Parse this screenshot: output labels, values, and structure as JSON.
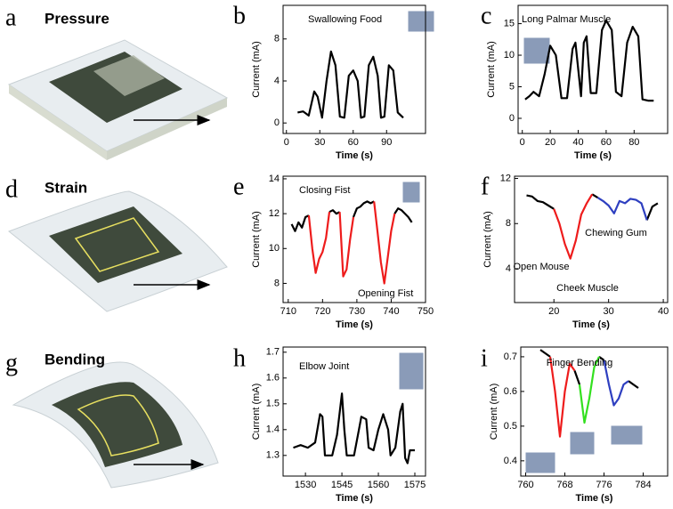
{
  "panels": [
    {
      "letter": "a",
      "label": "Pressure"
    },
    {
      "letter": "d",
      "label": "Strain"
    },
    {
      "letter": "g",
      "label": "Bending"
    }
  ],
  "chart_data": [
    {
      "type": "line",
      "label": "b",
      "xlabel": "Time (s)",
      "ylabel": "Current (mA)",
      "annotations": [
        {
          "text": "Swallowing Food",
          "color": "#000000"
        }
      ],
      "x": [
        10,
        15,
        20,
        25,
        28,
        32,
        36,
        40,
        44,
        48,
        52,
        56,
        60,
        64,
        67,
        70,
        74,
        78,
        82,
        85,
        88,
        92,
        96,
        100,
        105
      ],
      "series": [
        {
          "color": "#000000",
          "values": [
            1.0,
            1.1,
            0.7,
            3.0,
            2.5,
            0.5,
            4.0,
            6.8,
            5.5,
            0.6,
            0.5,
            4.5,
            5.0,
            4.0,
            0.5,
            0.6,
            5.5,
            6.3,
            4.5,
            0.5,
            0.6,
            5.5,
            5.0,
            1.0,
            0.5
          ]
        }
      ],
      "xlim": [
        -3,
        125
      ],
      "ylim": [
        -1,
        11.2
      ],
      "xticks": [
        0,
        30,
        60,
        90
      ],
      "yticks": [
        0,
        4,
        8
      ]
    },
    {
      "type": "line",
      "label": "c",
      "xlabel": "Time (s)",
      "ylabel": "Current (mA)",
      "annotations": [
        {
          "text": "Long Palmar Muscle",
          "color": "#000000"
        }
      ],
      "x": [
        2,
        5,
        8,
        12,
        16,
        20,
        24,
        28,
        32,
        36,
        38,
        42,
        44,
        46,
        49,
        53,
        57,
        60,
        64,
        67,
        71,
        75,
        79,
        83,
        86,
        90,
        94
      ],
      "series": [
        {
          "color": "#000000",
          "values": [
            3.0,
            3.5,
            4.2,
            3.5,
            7,
            11.5,
            10,
            3.2,
            3.2,
            11,
            12,
            3.5,
            12,
            13,
            4,
            4,
            14,
            15.5,
            14,
            4.2,
            3.5,
            12,
            14.5,
            13,
            3,
            2.8,
            2.8
          ]
        }
      ],
      "xlim": [
        -3,
        104
      ],
      "ylim": [
        -2.4,
        17.9
      ],
      "xticks": [
        0,
        20,
        40,
        60,
        80
      ],
      "yticks": [
        0,
        5,
        10,
        15
      ]
    },
    {
      "type": "line",
      "label": "e",
      "xlabel": "Time (s)",
      "ylabel": "Current (mA)",
      "annotations": [
        {
          "text": "Closing Fist",
          "color": "#000000"
        },
        {
          "text": "Opening Fist",
          "color": "#000000"
        }
      ],
      "x": [
        711,
        712,
        713,
        714,
        715,
        716,
        717,
        718,
        719,
        720,
        721,
        722,
        723,
        724,
        725,
        726,
        727,
        728,
        729,
        730,
        731,
        732,
        733,
        734,
        735,
        736,
        737,
        738,
        739,
        740,
        741,
        742,
        743,
        744,
        745,
        746
      ],
      "series": [
        {
          "color": "#000000",
          "values": [
            11.4,
            11.0,
            11.5,
            11.2,
            11.8,
            11.9,
            null,
            null,
            null,
            null,
            null,
            12.1,
            12.2,
            12.0,
            12.1,
            null,
            null,
            null,
            11.8,
            12.3,
            12.4,
            12.6,
            12.7,
            12.6,
            12.7,
            null,
            null,
            null,
            null,
            null,
            12.0,
            12.3,
            12.2,
            12.0,
            11.8,
            11.5
          ]
        },
        {
          "color": "#ee1c1c",
          "values": [
            null,
            null,
            null,
            null,
            null,
            11.9,
            10.0,
            8.6,
            9.4,
            9.8,
            10.6,
            12.1,
            null,
            null,
            12.1,
            8.4,
            8.8,
            10.5,
            11.8,
            null,
            null,
            null,
            null,
            null,
            12.7,
            11.0,
            9.2,
            8.0,
            9.5,
            11.0,
            12.0,
            null,
            null,
            null,
            null,
            null
          ]
        }
      ],
      "xlim": [
        708.5,
        750
      ],
      "ylim": [
        6.9,
        14.15
      ],
      "xticks": [
        710,
        720,
        730,
        740,
        750
      ],
      "yticks": [
        8,
        10,
        12,
        14
      ]
    },
    {
      "type": "line",
      "label": "f",
      "xlabel": "Time (s)",
      "ylabel": "Current (mA)",
      "annotations": [
        {
          "text": "Open Mouse",
          "color": "#ee1c1c"
        },
        {
          "text": "Chewing Gum",
          "color": "#2e3fc0"
        },
        {
          "text": "Cheek Muscle",
          "color": "#000000"
        }
      ],
      "x": [
        15,
        16,
        17,
        18,
        19,
        20,
        21,
        22,
        23,
        24,
        25,
        26,
        27,
        28,
        29,
        30,
        31,
        32,
        33,
        34,
        35,
        36,
        37,
        38,
        39
      ],
      "series": [
        {
          "color": "#000000",
          "values": [
            10.5,
            10.4,
            10.0,
            9.9,
            9.6,
            9.3,
            null,
            null,
            null,
            null,
            null,
            null,
            10.6,
            10.3,
            null,
            null,
            null,
            null,
            null,
            null,
            null,
            null,
            8.3,
            9.5,
            9.8
          ]
        },
        {
          "color": "#ee1c1c",
          "values": [
            null,
            null,
            null,
            null,
            null,
            9.3,
            8.0,
            6.2,
            4.9,
            6.5,
            8.8,
            9.8,
            10.6,
            null,
            null,
            null,
            null,
            null,
            null,
            null,
            null,
            null,
            null,
            null,
            null
          ]
        },
        {
          "color": "#2e3fc0",
          "values": [
            null,
            null,
            null,
            null,
            null,
            null,
            null,
            null,
            null,
            null,
            null,
            null,
            null,
            10.3,
            10.0,
            9.6,
            8.9,
            10.0,
            9.8,
            10.2,
            10.1,
            9.8,
            8.3,
            null,
            null
          ]
        }
      ],
      "xlim": [
        12.8,
        40.8
      ],
      "ylim": [
        1,
        12.2
      ],
      "xticks": [
        20,
        30,
        40
      ],
      "yticks": [
        4,
        8,
        12
      ]
    },
    {
      "type": "line",
      "label": "h",
      "xlabel": "Time (s)",
      "ylabel": "Current (mA)",
      "annotations": [
        {
          "text": "Elbow Joint",
          "color": "#000000"
        }
      ],
      "x": [
        1525,
        1528,
        1531,
        1534,
        1536,
        1537,
        1538,
        1541,
        1543,
        1545,
        1546,
        1547,
        1550,
        1552,
        1553,
        1555,
        1556,
        1558,
        1560,
        1562,
        1564,
        1565,
        1567,
        1569,
        1570,
        1571,
        1572,
        1573,
        1575
      ],
      "series": [
        {
          "color": "#000000",
          "values": [
            1.33,
            1.34,
            1.33,
            1.35,
            1.46,
            1.45,
            1.3,
            1.3,
            1.38,
            1.54,
            1.4,
            1.3,
            1.3,
            1.4,
            1.45,
            1.44,
            1.33,
            1.32,
            1.4,
            1.46,
            1.4,
            1.3,
            1.33,
            1.47,
            1.5,
            1.29,
            1.27,
            1.32,
            1.32
          ]
        }
      ],
      "xlim": [
        1520.8,
        1579.4
      ],
      "ylim": [
        1.22,
        1.72
      ],
      "xticks": [
        1530,
        1545,
        1560,
        1575
      ],
      "yticks": [
        1.3,
        1.4,
        1.5,
        1.6,
        1.7
      ]
    },
    {
      "type": "line",
      "label": "i",
      "xlabel": "Time (s)",
      "ylabel": "Current (mA)",
      "annotations": [
        {
          "text": "Finger Bending",
          "color": "#000000"
        }
      ],
      "x": [
        763,
        764,
        765,
        766,
        767,
        768,
        769,
        770,
        771,
        772,
        773,
        774,
        775,
        776,
        777,
        778,
        779,
        780,
        781,
        782,
        783
      ],
      "series": [
        {
          "color": "#000000",
          "values": [
            0.72,
            0.71,
            0.7,
            null,
            null,
            null,
            null,
            0.66,
            0.62,
            null,
            null,
            null,
            0.7,
            0.69,
            null,
            null,
            null,
            null,
            0.63,
            0.62,
            0.61
          ]
        },
        {
          "color": "#ee1c1c",
          "values": [
            null,
            null,
            0.7,
            0.6,
            0.47,
            0.6,
            0.68,
            0.66,
            null,
            null,
            null,
            null,
            null,
            null,
            null,
            null,
            null,
            null,
            null,
            null,
            null
          ]
        },
        {
          "color": "#33e01f",
          "values": [
            null,
            null,
            null,
            null,
            null,
            null,
            null,
            null,
            0.62,
            0.51,
            0.58,
            0.67,
            0.7,
            null,
            null,
            null,
            null,
            null,
            null,
            null,
            null
          ]
        },
        {
          "color": "#2e3fc0",
          "values": [
            null,
            null,
            null,
            null,
            null,
            null,
            null,
            null,
            null,
            null,
            null,
            null,
            null,
            0.69,
            0.62,
            0.56,
            0.58,
            0.62,
            0.63,
            null,
            null
          ]
        }
      ],
      "xlim": [
        759,
        789
      ],
      "ylim": [
        0.356,
        0.728
      ],
      "xticks": [
        760,
        768,
        776,
        784
      ],
      "yticks": [
        0.4,
        0.5,
        0.6,
        0.7
      ]
    }
  ]
}
